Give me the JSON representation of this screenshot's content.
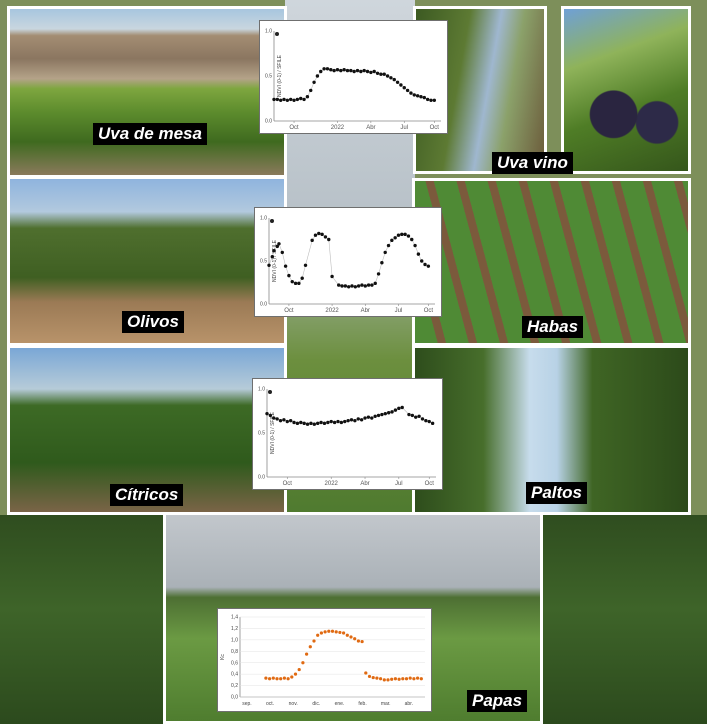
{
  "labels": {
    "uva_mesa": "Uva de mesa",
    "uva_vino": "Uva vino",
    "olivos": "Olivos",
    "habas": "Habas",
    "citricos": "Cítricos",
    "paltos": "Paltos",
    "papas": "Papas"
  },
  "chart_data": [
    {
      "type": "scatter",
      "chart": "uva-de-mesa",
      "ylabel": "NDVI (0-1) / SFILE",
      "ytick_labels": [
        "0.0",
        "0.5",
        "1.0"
      ],
      "ylim": [
        0,
        1
      ],
      "xtick_labels": [
        "Oct",
        "2022",
        "Abr",
        "Jul",
        "Oct"
      ],
      "series": [
        {
          "x": [
            0.0,
            0.02,
            0.04,
            0.06,
            0.08,
            0.1,
            0.12,
            0.14,
            0.16,
            0.18,
            0.2,
            0.22,
            0.24,
            0.26,
            0.28,
            0.3,
            0.32,
            0.34,
            0.36,
            0.38,
            0.4,
            0.42,
            0.44,
            0.46,
            0.48,
            0.5,
            0.52,
            0.54,
            0.56,
            0.58,
            0.6,
            0.62,
            0.64,
            0.66,
            0.68,
            0.7,
            0.72,
            0.74,
            0.76,
            0.78,
            0.8,
            0.82,
            0.84,
            0.86,
            0.88,
            0.9,
            0.92,
            0.94,
            0.96
          ],
          "y": [
            0.24,
            0.24,
            0.23,
            0.24,
            0.23,
            0.24,
            0.23,
            0.24,
            0.25,
            0.24,
            0.27,
            0.34,
            0.43,
            0.5,
            0.55,
            0.58,
            0.58,
            0.57,
            0.56,
            0.57,
            0.56,
            0.57,
            0.56,
            0.56,
            0.55,
            0.56,
            0.55,
            0.56,
            0.55,
            0.54,
            0.55,
            0.53,
            0.52,
            0.52,
            0.5,
            0.48,
            0.46,
            0.43,
            0.4,
            0.37,
            0.34,
            0.31,
            0.29,
            0.28,
            0.27,
            0.26,
            0.24,
            0.23,
            0.23
          ]
        }
      ]
    },
    {
      "type": "scatter",
      "chart": "olivos",
      "ylabel": "NDVI (0-1) / SFILE",
      "ytick_labels": [
        "0.0",
        "0.5",
        "1.0"
      ],
      "ylim": [
        0,
        1
      ],
      "xtick_labels": [
        "Oct",
        "2022",
        "Abr",
        "Jul",
        "Oct"
      ],
      "series": [
        {
          "x": [
            0.0,
            0.02,
            0.03,
            0.05,
            0.06,
            0.08,
            0.1,
            0.12,
            0.14,
            0.16,
            0.18,
            0.2,
            0.22,
            0.26,
            0.28,
            0.3,
            0.32,
            0.34,
            0.36,
            0.38,
            0.42,
            0.44,
            0.46,
            0.48,
            0.5,
            0.52,
            0.54,
            0.56,
            0.58,
            0.6,
            0.62,
            0.64,
            0.66,
            0.68,
            0.7,
            0.72,
            0.74,
            0.76,
            0.78,
            0.8,
            0.82,
            0.84,
            0.86,
            0.88,
            0.9,
            0.92,
            0.94,
            0.96
          ],
          "y": [
            0.45,
            0.55,
            0.62,
            0.67,
            0.7,
            0.6,
            0.44,
            0.33,
            0.26,
            0.24,
            0.24,
            0.3,
            0.45,
            0.74,
            0.8,
            0.82,
            0.81,
            0.78,
            0.75,
            0.32,
            0.22,
            0.21,
            0.21,
            0.2,
            0.21,
            0.2,
            0.21,
            0.22,
            0.21,
            0.22,
            0.22,
            0.24,
            0.35,
            0.48,
            0.6,
            0.68,
            0.74,
            0.77,
            0.8,
            0.81,
            0.81,
            0.79,
            0.75,
            0.68,
            0.58,
            0.5,
            0.46,
            0.44
          ]
        }
      ]
    },
    {
      "type": "scatter",
      "chart": "citricos",
      "ylabel": "NDVI (0-1) / SFILE",
      "ytick_labels": [
        "0.0",
        "0.5",
        "1.0"
      ],
      "ylim": [
        0,
        1
      ],
      "xtick_labels": [
        "Oct",
        "2022",
        "Abr",
        "Jul",
        "Oct"
      ],
      "series": [
        {
          "x": [
            0.0,
            0.02,
            0.04,
            0.06,
            0.08,
            0.1,
            0.12,
            0.14,
            0.16,
            0.18,
            0.2,
            0.22,
            0.24,
            0.26,
            0.28,
            0.3,
            0.32,
            0.34,
            0.36,
            0.38,
            0.4,
            0.42,
            0.44,
            0.46,
            0.48,
            0.5,
            0.52,
            0.54,
            0.56,
            0.58,
            0.6,
            0.62,
            0.64,
            0.66,
            0.68,
            0.7,
            0.72,
            0.74,
            0.76,
            0.78,
            0.8,
            0.84,
            0.86,
            0.88,
            0.9,
            0.92,
            0.94,
            0.96,
            0.98
          ],
          "y": [
            0.72,
            0.7,
            0.67,
            0.66,
            0.64,
            0.65,
            0.63,
            0.64,
            0.62,
            0.61,
            0.62,
            0.61,
            0.6,
            0.61,
            0.6,
            0.61,
            0.62,
            0.61,
            0.62,
            0.63,
            0.62,
            0.63,
            0.62,
            0.63,
            0.64,
            0.65,
            0.64,
            0.66,
            0.65,
            0.67,
            0.68,
            0.67,
            0.69,
            0.7,
            0.71,
            0.72,
            0.73,
            0.74,
            0.76,
            0.78,
            0.79,
            0.71,
            0.7,
            0.68,
            0.69,
            0.66,
            0.64,
            0.63,
            0.61
          ]
        }
      ]
    },
    {
      "type": "scatter",
      "chart": "papas",
      "ylabel": "Kc",
      "ylim": [
        0,
        1.4
      ],
      "yticks": [
        "0,0",
        "0,2",
        "0,4",
        "0,6",
        "0,8",
        "1,0",
        "1,2",
        "1,4"
      ],
      "xticks": [
        "sep.",
        "oct.",
        "nov.",
        "dic.",
        "ene.",
        "feb.",
        "mar.",
        "abr."
      ],
      "series": [
        {
          "x": [
            0.14,
            0.16,
            0.18,
            0.2,
            0.22,
            0.24,
            0.26,
            0.28,
            0.3,
            0.32,
            0.34,
            0.36,
            0.38,
            0.4,
            0.42,
            0.44,
            0.46,
            0.48,
            0.5,
            0.52,
            0.54,
            0.56,
            0.58,
            0.6,
            0.62,
            0.64,
            0.66,
            0.68,
            0.7,
            0.72,
            0.74,
            0.76,
            0.78,
            0.8,
            0.82,
            0.84,
            0.86,
            0.88,
            0.9,
            0.92,
            0.94,
            0.96,
            0.98
          ],
          "y": [
            0.33,
            0.32,
            0.33,
            0.32,
            0.32,
            0.33,
            0.32,
            0.35,
            0.4,
            0.48,
            0.6,
            0.75,
            0.88,
            0.98,
            1.08,
            1.12,
            1.14,
            1.15,
            1.15,
            1.14,
            1.13,
            1.12,
            1.08,
            1.05,
            1.02,
            0.98,
            0.97,
            0.42,
            0.36,
            0.34,
            0.33,
            0.32,
            0.3,
            0.3,
            0.31,
            0.32,
            0.31,
            0.32,
            0.32,
            0.33,
            0.32,
            0.33,
            0.32
          ]
        }
      ]
    }
  ]
}
